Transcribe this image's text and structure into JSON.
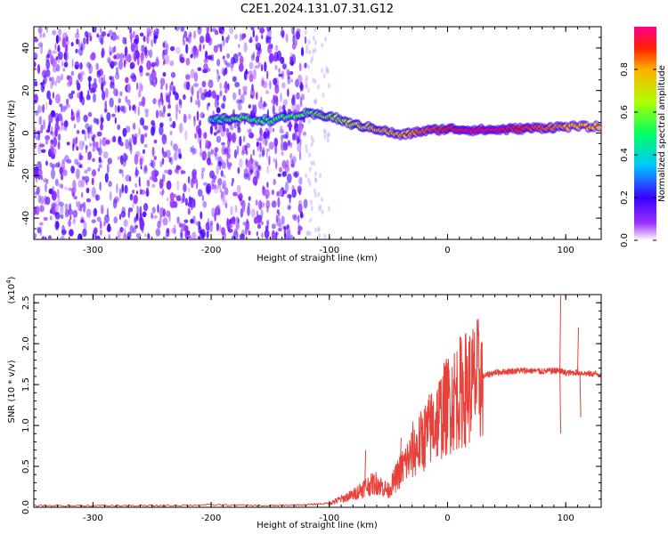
{
  "title": "C2E1.2024.131.07.31.G12",
  "chart_data": [
    {
      "type": "heatmap",
      "xlabel": "Height of straight line (km)",
      "ylabel": "Frequency (Hz)",
      "xlim": [
        -350,
        130
      ],
      "ylim": [
        -50,
        50
      ],
      "xticks": [
        -300,
        -200,
        -100,
        0,
        100
      ],
      "yticks": [
        -40,
        -20,
        0,
        20,
        40
      ],
      "colorbar": {
        "label": "Normalized spectral amplitude",
        "range": [
          0.0,
          1.0
        ],
        "ticks": [
          0.0,
          0.2,
          0.4,
          0.6,
          0.8
        ]
      },
      "ridge": {
        "x": [
          -200,
          -180,
          -150,
          -120,
          -100,
          -80,
          -60,
          -40,
          -20,
          0,
          20,
          40,
          60,
          80,
          100,
          130
        ],
        "freq": [
          6,
          7,
          6,
          9,
          8,
          4,
          2,
          -1,
          1,
          2,
          1.5,
          1.5,
          2,
          2.5,
          3,
          3
        ],
        "amp": [
          0.45,
          0.55,
          0.5,
          0.55,
          0.6,
          0.65,
          0.75,
          0.75,
          0.85,
          0.9,
          0.95,
          0.95,
          0.9,
          0.85,
          0.8,
          0.8
        ]
      },
      "noise_region": [
        -350,
        -120
      ]
    },
    {
      "type": "line",
      "xlabel": "Height of straight line (km)",
      "ylabel": "SNR (10 * v/v)",
      "scale_label": "(x10",
      "scale_exp": "4",
      "xlim": [
        -350,
        130
      ],
      "ylim": [
        0.0,
        2.6
      ],
      "xticks": [
        -300,
        -200,
        -100,
        0,
        100
      ],
      "yticks": [
        "0.0",
        "0.5",
        "1.0",
        "1.5",
        "2.0",
        "2.5"
      ],
      "series": [
        {
          "color": "#e8413a",
          "x": [
            -350,
            -300,
            -250,
            -200,
            -150,
            -120,
            -100,
            -90,
            -80,
            -70,
            -60,
            -50,
            -40,
            -30,
            -20,
            -10,
            0,
            10,
            20,
            30,
            40,
            50,
            60,
            70,
            80,
            90,
            95,
            100,
            110,
            120,
            130
          ],
          "values": [
            0.02,
            0.02,
            0.02,
            0.03,
            0.02,
            0.03,
            0.05,
            0.1,
            0.15,
            0.25,
            0.3,
            0.2,
            0.45,
            0.65,
            0.85,
            1.05,
            1.25,
            1.4,
            1.5,
            1.6,
            1.65,
            1.66,
            1.67,
            1.67,
            1.66,
            1.67,
            1.67,
            1.64,
            1.65,
            1.63,
            1.63
          ],
          "spikes": [
            [
              -70,
              0.7
            ],
            [
              -40,
              0.85
            ],
            [
              -30,
              1.05
            ],
            [
              -15,
              1.3
            ],
            [
              10,
              1.45
            ],
            [
              95,
              2.6
            ],
            [
              95,
              0.9
            ],
            [
              110,
              2.2
            ],
            [
              112,
              1.1
            ]
          ]
        }
      ]
    }
  ]
}
